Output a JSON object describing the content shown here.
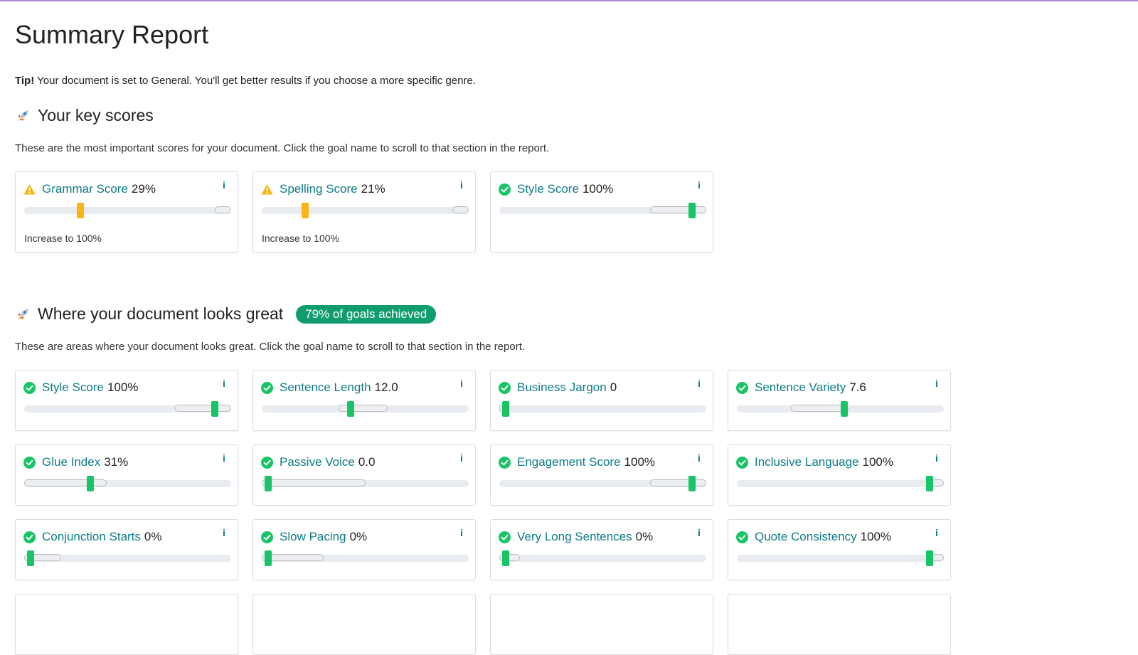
{
  "page_title": "Summary Report",
  "tip": {
    "label": "Tip!",
    "text": "Your document is set to General. You'll get better results if you choose a more specific genre."
  },
  "key_scores": {
    "heading": "Your key scores",
    "description": "These are the most important scores for your document. Click the goal name to scroll to that section in the report.",
    "cards": [
      {
        "name": "Grammar Score",
        "value": "29%",
        "status": "warning",
        "hint": "Increase to 100%",
        "info": "i",
        "score": 0.27,
        "target_start": 0.92,
        "target_end": 1.0
      },
      {
        "name": "Spelling Score",
        "value": "21%",
        "status": "warning",
        "hint": "Increase to 100%",
        "info": "i",
        "score": 0.21,
        "target_start": 0.92,
        "target_end": 1.0
      },
      {
        "name": "Style Score",
        "value": "100%",
        "status": "ok",
        "hint": "",
        "info": "i",
        "score": 0.93,
        "target_start": 0.73,
        "target_end": 1.0
      }
    ]
  },
  "great": {
    "heading": "Where your document looks great",
    "badge": "79% of goals achieved",
    "description": "These are areas where your document looks great. Click the goal name to scroll to that section in the report.",
    "cards": [
      {
        "name": "Style Score",
        "value": "100%",
        "status": "ok",
        "info": "i",
        "score": 0.92,
        "target_start": 0.73,
        "target_end": 1.0
      },
      {
        "name": "Sentence Length",
        "value": "12.0",
        "status": "ok",
        "info": "i",
        "score": 0.43,
        "target_start": 0.37,
        "target_end": 0.61
      },
      {
        "name": "Business Jargon",
        "value": "0",
        "status": "ok",
        "info": "i",
        "score": 0.03,
        "target_start": 0.0,
        "target_end": 0.02
      },
      {
        "name": "Sentence Variety",
        "value": "7.6",
        "status": "ok",
        "info": "i",
        "score": 0.52,
        "target_start": 0.26,
        "target_end": 0.54
      },
      {
        "name": "Glue Index",
        "value": "31%",
        "status": "ok",
        "info": "i",
        "score": 0.32,
        "target_start": 0.0,
        "target_end": 0.4
      },
      {
        "name": "Passive Voice",
        "value": "0.0",
        "status": "ok",
        "info": "i",
        "score": 0.03,
        "target_start": 0.0,
        "target_end": 0.5
      },
      {
        "name": "Engagement Score",
        "value": "100%",
        "status": "ok",
        "info": "i",
        "score": 0.93,
        "target_start": 0.73,
        "target_end": 1.0
      },
      {
        "name": "Inclusive Language",
        "value": "100%",
        "status": "ok",
        "info": "i",
        "score": 0.93,
        "target_start": 0.92,
        "target_end": 1.0
      },
      {
        "name": "Conjunction Starts",
        "value": "0%",
        "status": "ok",
        "info": "i",
        "score": 0.03,
        "target_start": 0.0,
        "target_end": 0.18
      },
      {
        "name": "Slow Pacing",
        "value": "0%",
        "status": "ok",
        "info": "i",
        "score": 0.03,
        "target_start": 0.0,
        "target_end": 0.3
      },
      {
        "name": "Very Long Sentences",
        "value": "0%",
        "status": "ok",
        "info": "i",
        "score": 0.03,
        "target_start": 0.0,
        "target_end": 0.1
      },
      {
        "name": "Quote Consistency",
        "value": "100%",
        "status": "ok",
        "info": "i",
        "score": 0.93,
        "target_start": 0.92,
        "target_end": 1.0
      }
    ],
    "partial_row_count": 4
  },
  "colors": {
    "ok": "#18c466",
    "warning": "#f9b415",
    "link": "#0e7c86",
    "badge": "#0f9d6e"
  },
  "icons": {
    "ok": "check-circle-icon",
    "warning": "warning-triangle-icon",
    "section": "rocket-icon",
    "info": "info-icon"
  }
}
